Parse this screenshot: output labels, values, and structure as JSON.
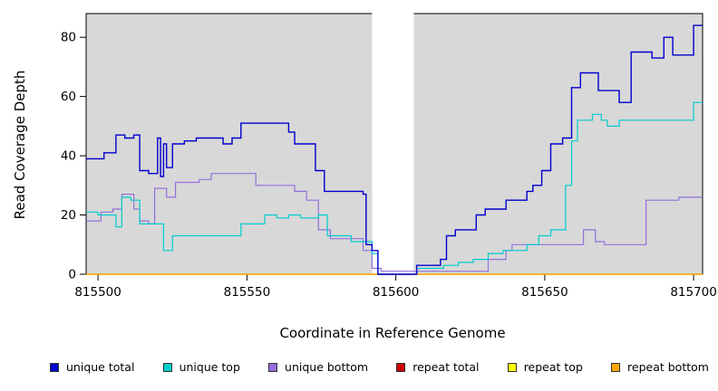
{
  "figure": {
    "type": "coverage-step-plot"
  },
  "chart_data": {
    "type": "line",
    "subtype": "step",
    "title": "",
    "xlabel": "Coordinate in Reference Genome",
    "ylabel": "Read Coverage Depth",
    "xlim": [
      815496,
      815703
    ],
    "ylim": [
      0,
      88
    ],
    "x_ticks": [
      815500,
      815550,
      815600,
      815650,
      815700
    ],
    "y_ticks": [
      0,
      20,
      40,
      60,
      80
    ],
    "grid": false,
    "panel_bg": "#d8d8d8",
    "gap_region": {
      "x0": 815592,
      "x1": 815606,
      "color": "#ffffff"
    },
    "legend_position": "bottom",
    "series": [
      {
        "name": "unique total",
        "color": "#0000cc",
        "points": [
          [
            815496,
            39
          ],
          [
            815502,
            41
          ],
          [
            815506,
            47
          ],
          [
            815509,
            46
          ],
          [
            815512,
            47
          ],
          [
            815514,
            35
          ],
          [
            815517,
            34
          ],
          [
            815520,
            46
          ],
          [
            815521,
            33
          ],
          [
            815522,
            44
          ],
          [
            815523,
            36
          ],
          [
            815525,
            44
          ],
          [
            815529,
            45
          ],
          [
            815533,
            46
          ],
          [
            815538,
            46
          ],
          [
            815542,
            44
          ],
          [
            815545,
            46
          ],
          [
            815548,
            51
          ],
          [
            815564,
            48
          ],
          [
            815566,
            44
          ],
          [
            815573,
            35
          ],
          [
            815576,
            28
          ],
          [
            815589,
            27
          ],
          [
            815590,
            10
          ],
          [
            815592,
            8
          ],
          [
            815594,
            0
          ],
          [
            815607,
            3
          ],
          [
            815615,
            5
          ],
          [
            815617,
            13
          ],
          [
            815620,
            15
          ],
          [
            815627,
            20
          ],
          [
            815630,
            22
          ],
          [
            815637,
            25
          ],
          [
            815644,
            28
          ],
          [
            815646,
            30
          ],
          [
            815649,
            35
          ],
          [
            815652,
            44
          ],
          [
            815656,
            46
          ],
          [
            815659,
            63
          ],
          [
            815662,
            68
          ],
          [
            815668,
            62
          ],
          [
            815675,
            58
          ],
          [
            815679,
            75
          ],
          [
            815686,
            73
          ],
          [
            815690,
            80
          ],
          [
            815693,
            74
          ],
          [
            815700,
            84
          ]
        ]
      },
      {
        "name": "unique top",
        "color": "#00cdcd",
        "points": [
          [
            815496,
            21
          ],
          [
            815500,
            20
          ],
          [
            815506,
            16
          ],
          [
            815508,
            26
          ],
          [
            815511,
            25
          ],
          [
            815514,
            17
          ],
          [
            815522,
            8
          ],
          [
            815525,
            13
          ],
          [
            815548,
            17
          ],
          [
            815556,
            20
          ],
          [
            815560,
            19
          ],
          [
            815564,
            20
          ],
          [
            815568,
            19
          ],
          [
            815574,
            20
          ],
          [
            815577,
            13
          ],
          [
            815585,
            11
          ],
          [
            815592,
            7
          ],
          [
            815594,
            0
          ],
          [
            815607,
            2
          ],
          [
            815616,
            3
          ],
          [
            815621,
            4
          ],
          [
            815626,
            5
          ],
          [
            815631,
            7
          ],
          [
            815636,
            8
          ],
          [
            815644,
            10
          ],
          [
            815648,
            13
          ],
          [
            815652,
            15
          ],
          [
            815657,
            30
          ],
          [
            815659,
            45
          ],
          [
            815661,
            52
          ],
          [
            815666,
            54
          ],
          [
            815669,
            52
          ],
          [
            815671,
            50
          ],
          [
            815675,
            52
          ],
          [
            815700,
            58
          ]
        ]
      },
      {
        "name": "unique bottom",
        "color": "#9370db",
        "points": [
          [
            815496,
            18
          ],
          [
            815501,
            21
          ],
          [
            815505,
            22
          ],
          [
            815508,
            27
          ],
          [
            815512,
            22
          ],
          [
            815514,
            18
          ],
          [
            815517,
            17
          ],
          [
            815519,
            29
          ],
          [
            815523,
            26
          ],
          [
            815526,
            31
          ],
          [
            815534,
            32
          ],
          [
            815538,
            34
          ],
          [
            815553,
            30
          ],
          [
            815566,
            28
          ],
          [
            815570,
            25
          ],
          [
            815574,
            15
          ],
          [
            815578,
            12
          ],
          [
            815589,
            8
          ],
          [
            815592,
            2
          ],
          [
            815595,
            1
          ],
          [
            815631,
            5
          ],
          [
            815637,
            8
          ],
          [
            815639,
            10
          ],
          [
            815663,
            15
          ],
          [
            815667,
            11
          ],
          [
            815670,
            10
          ],
          [
            815684,
            25
          ],
          [
            815695,
            26
          ]
        ]
      },
      {
        "name": "repeat total",
        "color": "#cd0000",
        "points": [
          [
            815496,
            0
          ]
        ]
      },
      {
        "name": "repeat top",
        "color": "#ffff00",
        "points": [
          [
            815496,
            0
          ]
        ]
      },
      {
        "name": "repeat bottom",
        "color": "#ffa500",
        "points": [
          [
            815496,
            0
          ]
        ]
      }
    ]
  }
}
